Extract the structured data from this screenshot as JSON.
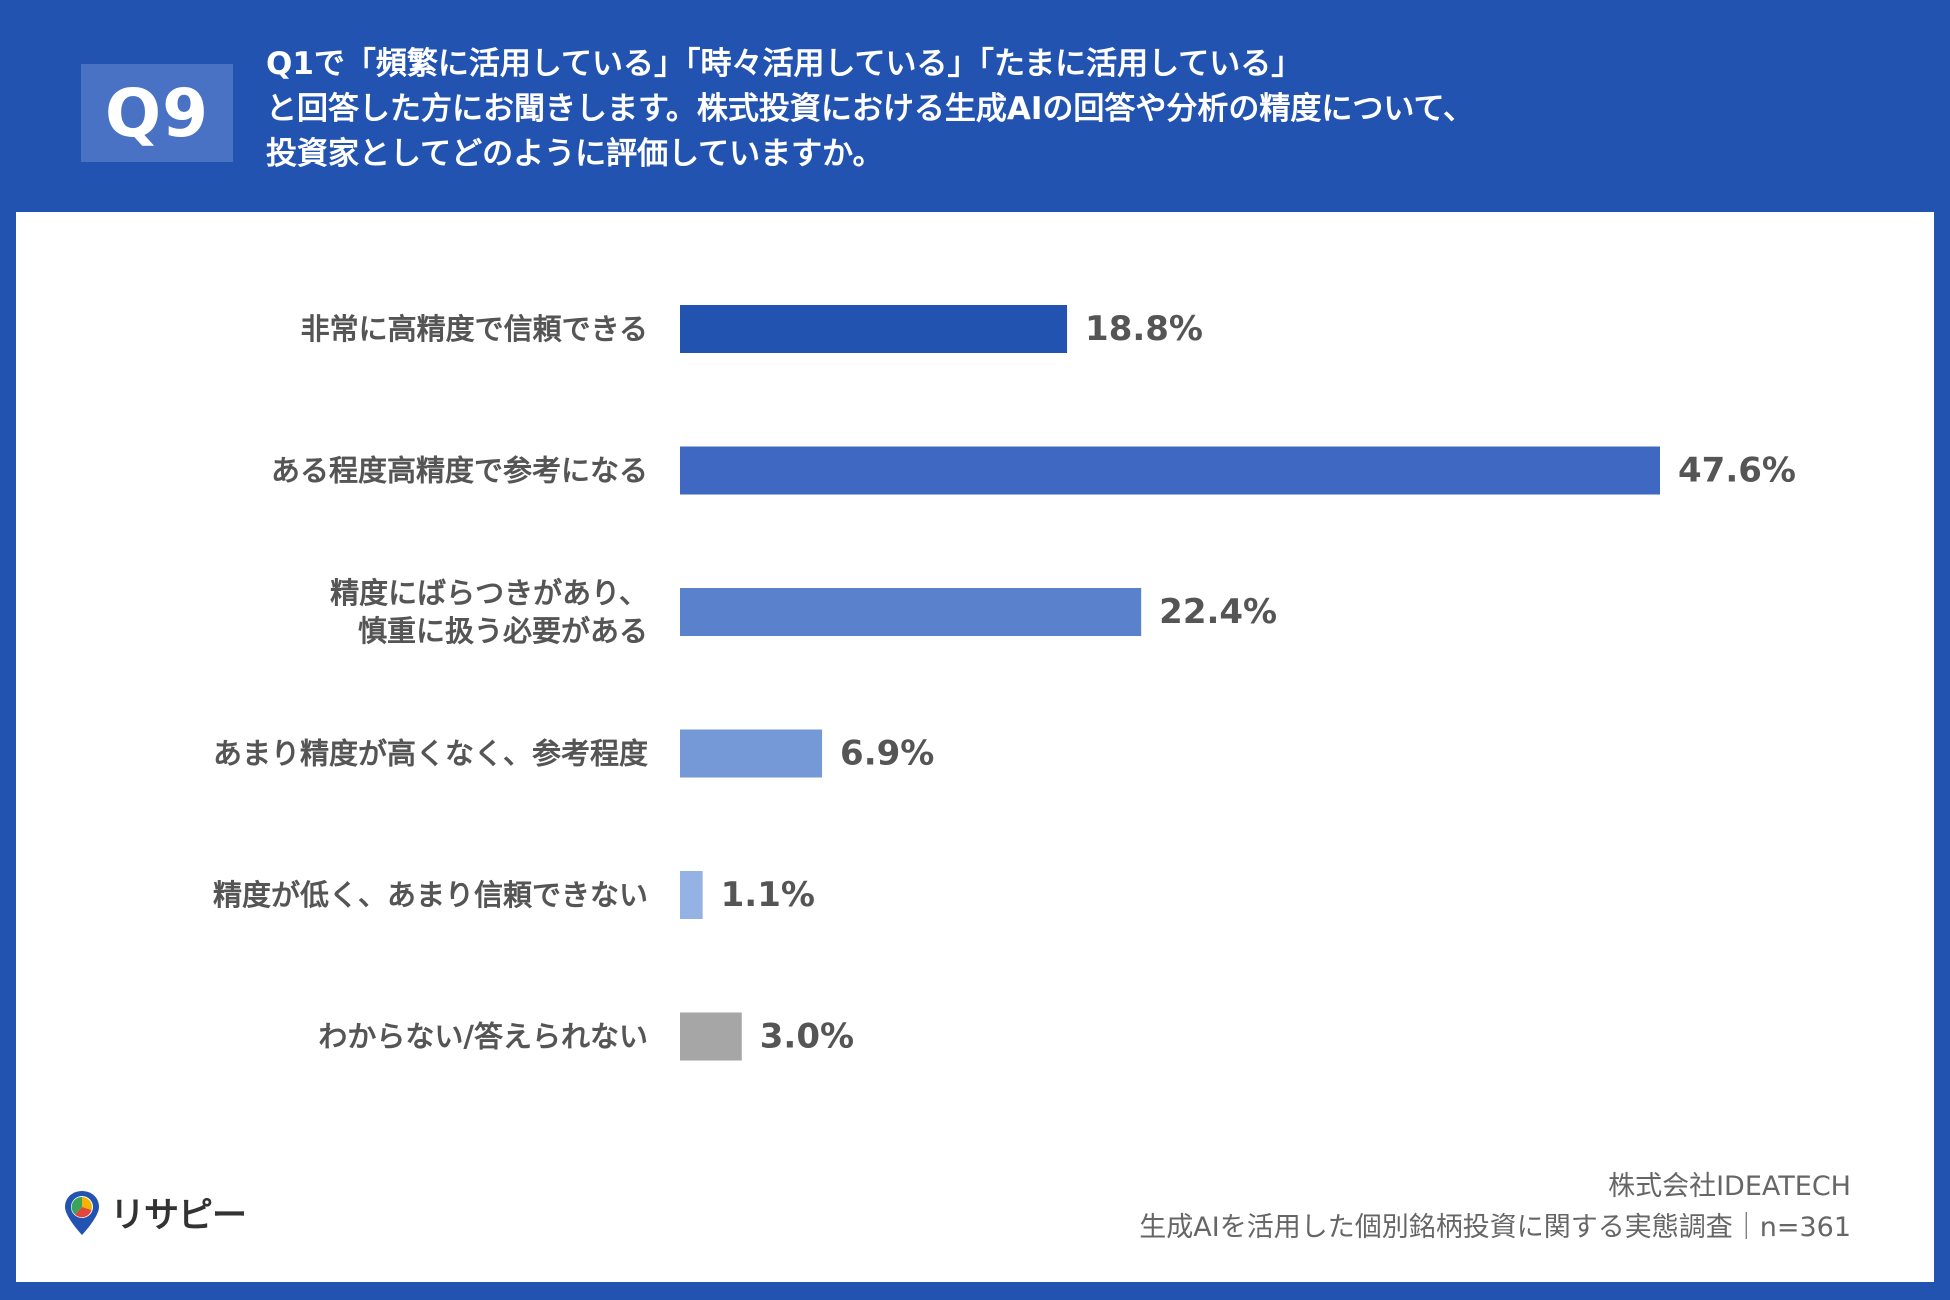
{
  "header": {
    "badge": "Q9",
    "question_lines": [
      "Q1で「頻繁に活用している」「時々活用している」「たまに活用している」",
      "と回答した方にお聞きします。株式投資における生成AIの回答や分析の精度について、",
      "投資家としてどのように評価していますか。"
    ]
  },
  "chart_data": {
    "type": "bar",
    "orientation": "horizontal",
    "categories": [
      [
        "非常に高精度で信頼できる"
      ],
      [
        "ある程度高精度で参考になる"
      ],
      [
        "精度にばらつきがあり、",
        "慎重に扱う必要がある"
      ],
      [
        "あまり精度が高くなく、参考程度"
      ],
      [
        "精度が低く、あまり信頼できない"
      ],
      [
        "わからない/答えられない"
      ]
    ],
    "values": [
      18.8,
      47.6,
      22.4,
      6.9,
      1.1,
      3.0
    ],
    "value_labels": [
      "18.8%",
      "47.6%",
      "22.4%",
      "6.9%",
      "1.1%",
      "3.0%"
    ],
    "colors": [
      "#2353b0",
      "#3e68c2",
      "#5a82cc",
      "#7598d6",
      "#94b2e3",
      "#a6a6a6"
    ],
    "xlim": [
      0,
      47.6
    ],
    "grid": false,
    "legend": "none"
  },
  "footer": {
    "company": "株式会社IDEATECH",
    "survey": "生成AIを活用した個別銘柄投資に関する実態調査｜n=361"
  },
  "logo": {
    "text": "リサピー",
    "icon": "map-pin-pie-icon"
  }
}
